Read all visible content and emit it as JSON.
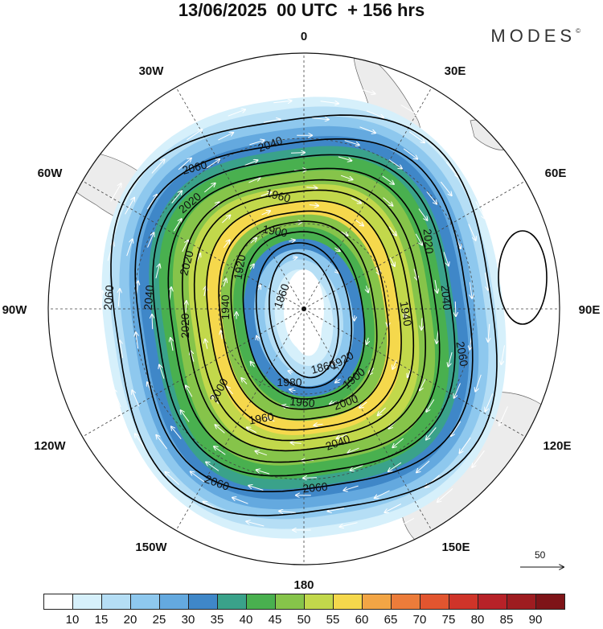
{
  "header": {
    "title": "13/06/2025  00 UTC  + 156 hrs",
    "brand": "MODES",
    "brand_mark": "©"
  },
  "map": {
    "projection": "polar stereographic (south pole)",
    "longitude_labels": {
      "top": "0",
      "top_right": "30E",
      "right_upper": "60E",
      "right": "90E",
      "right_lower": "120E",
      "bottom_right": "150E",
      "bottom": "180",
      "bottom_left": "150W",
      "left_lower": "120W",
      "left": "90W",
      "left_upper": "60W",
      "top_left": "30W"
    },
    "contour_labels": [
      "1860",
      "1860",
      "1900",
      "1900",
      "1920",
      "1920",
      "1940",
      "1940",
      "1960",
      "1960",
      "1960",
      "1980",
      "2000",
      "2000",
      "2020",
      "2020",
      "2020",
      "2020",
      "2040",
      "2040",
      "2040",
      "2040",
      "2060",
      "2060",
      "2060",
      "2060",
      "2060"
    ],
    "reference_vector": "50",
    "colors": {
      "land": "#ececec",
      "ocean": "#ffffff",
      "grid": "#444444"
    }
  },
  "colorbar": {
    "ticks": [
      "10",
      "15",
      "20",
      "25",
      "30",
      "35",
      "40",
      "45",
      "50",
      "55",
      "60",
      "65",
      "70",
      "75",
      "80",
      "85",
      "90"
    ],
    "colors": [
      "#ffffff",
      "#d6f0fb",
      "#b5def5",
      "#8ec8ee",
      "#64a9df",
      "#3f87c8",
      "#3aa28a",
      "#49b04f",
      "#86c44a",
      "#c2d84b",
      "#f5d84c",
      "#f2a545",
      "#ec7c3a",
      "#e2552f",
      "#cf3429",
      "#b72228",
      "#9e1c20",
      "#7e1418"
    ]
  }
}
